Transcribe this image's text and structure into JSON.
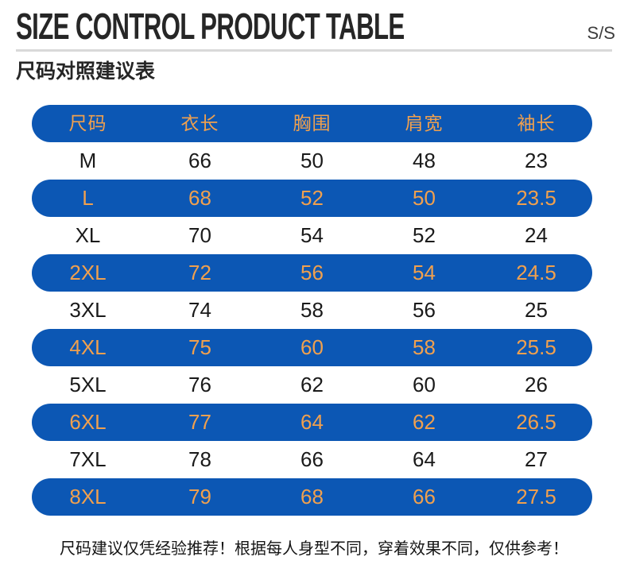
{
  "page": {
    "title": "SIZE CONTROL PRODUCT TABLE",
    "season_label": "S/S",
    "subtitle": "尺码对照建议表",
    "footer_note": "尺码建议仅凭经验推荐！根据每人身型不同，穿着效果不同，仅供参考！"
  },
  "colors": {
    "row_blue": "#0c57b4",
    "text_orange": "#f0a04e",
    "text_dark": "#1a1a1a"
  },
  "chart_data": {
    "type": "table",
    "title": "尺码对照建议表 (Size Control Product Table)",
    "columns": [
      "尺码",
      "衣长",
      "胸围",
      "肩宽",
      "袖长"
    ],
    "rows": [
      [
        "M",
        "66",
        "50",
        "48",
        "23"
      ],
      [
        "L",
        "68",
        "52",
        "50",
        "23.5"
      ],
      [
        "XL",
        "70",
        "54",
        "52",
        "24"
      ],
      [
        "2XL",
        "72",
        "56",
        "54",
        "24.5"
      ],
      [
        "3XL",
        "74",
        "58",
        "56",
        "25"
      ],
      [
        "4XL",
        "75",
        "60",
        "58",
        "25.5"
      ],
      [
        "5XL",
        "76",
        "62",
        "60",
        "26"
      ],
      [
        "6XL",
        "77",
        "64",
        "62",
        "26.5"
      ],
      [
        "7XL",
        "78",
        "66",
        "64",
        "27"
      ],
      [
        "8XL",
        "79",
        "68",
        "66",
        "27.5"
      ]
    ],
    "highlighted_rows": [
      "L",
      "2XL",
      "4XL",
      "6XL",
      "8XL"
    ],
    "layout": "header row and every second data row shown as blue capsule with orange text; other rows white with black text"
  }
}
